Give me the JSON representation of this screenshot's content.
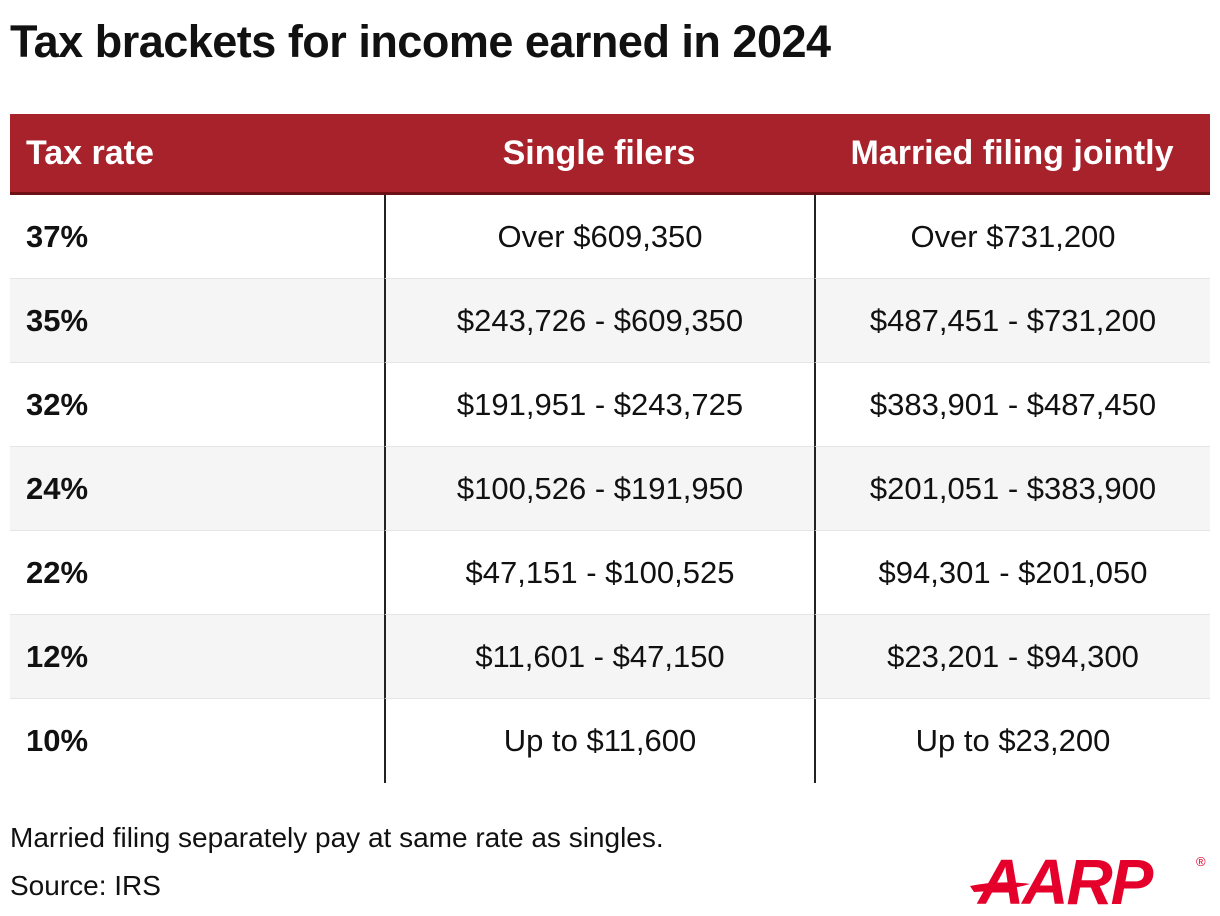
{
  "title": "Tax brackets for income earned in 2024",
  "colors": {
    "header_bg": "#a8222b",
    "brand_red": "#e4002b",
    "alt_row": "#f5f5f5"
  },
  "chart_data": {
    "type": "table",
    "title": "Tax brackets for income earned in 2024",
    "columns": [
      "Tax rate",
      "Single filers",
      "Married filing jointly"
    ],
    "rows": [
      {
        "rate": "37%",
        "single": "Over $609,350",
        "married": "Over $731,200"
      },
      {
        "rate": "35%",
        "single": "$243,726 - $609,350",
        "married": "$487,451 - $731,200"
      },
      {
        "rate": "32%",
        "single": "$191,951 - $243,725",
        "married": "$383,901 - $487,450"
      },
      {
        "rate": "24%",
        "single": "$100,526 - $191,950",
        "married": "$201,051 - $383,900"
      },
      {
        "rate": "22%",
        "single": "$47,151 - $100,525",
        "married": "$94,301 - $201,050"
      },
      {
        "rate": "12%",
        "single": "$11,601 - $47,150",
        "married": "$23,201 - $94,300"
      },
      {
        "rate": "10%",
        "single": "Up to $11,600",
        "married": "Up to $23,200"
      }
    ]
  },
  "note": "Married filing separately pay at same rate as singles.",
  "source": "Source: IRS",
  "logo": {
    "text": "AARP",
    "mark": "®",
    "icon": "aarp-logo"
  }
}
